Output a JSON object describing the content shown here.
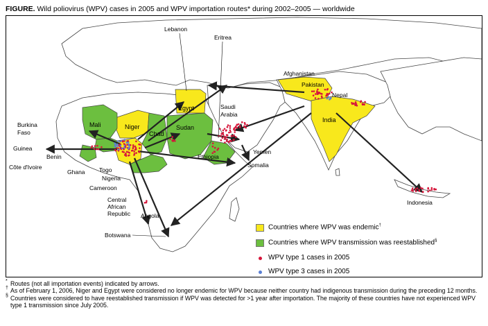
{
  "figure": {
    "label": "FIGURE.",
    "title": "Wild poliovirus (WPV) cases in 2005 and WPV importation routes* during 2002–2005 — worldwide"
  },
  "colors": {
    "endemic": "#f8e81c",
    "reestablished": "#6cbf3f",
    "wpv1": "#d6163b",
    "wpv3": "#5a7fd4",
    "arrow": "#222222",
    "land_fill": "#ffffff",
    "border": "#444444"
  },
  "map": {
    "endemic_countries": [
      "Egypt",
      "Niger",
      "Nigeria",
      "Afghanistan",
      "Pakistan",
      "India"
    ],
    "reestablished_countries": [
      "Mali",
      "Burkina Faso",
      "Chad",
      "Sudan",
      "Ethiopia",
      "Côte d'Ivoire",
      "Cameroon",
      "Central African Republic"
    ],
    "labels": {
      "lebanon": "Lebanon",
      "eritrea": "Eritrea",
      "afghanistan": "Afghanistan",
      "pakistan": "Pakistan",
      "nepal": "Nepal",
      "india": "India",
      "egypt": "Egypt",
      "saudi_arabia_1": "Saudi",
      "saudi_arabia_2": "Arabia",
      "mali": "Mali",
      "niger": "Niger",
      "chad": "Chad",
      "sudan": "Sudan",
      "burkina_1": "Burkina",
      "burkina_2": "Faso",
      "guinea": "Guinea",
      "benin": "Benin",
      "cote": "Côte d'Ivoire",
      "ghana": "Ghana",
      "togo": "Togo",
      "nigeria": "Nigeria",
      "cameroon": "Cameroon",
      "car_1": "Central",
      "car_2": "African",
      "car_3": "Republic",
      "angola": "Angola",
      "botswana": "Botswana",
      "ethiopia": "Ethiopia",
      "yemen": "Yemen",
      "somalia": "Somalia",
      "indonesia": "Indonesia"
    }
  },
  "legend": {
    "endemic": "Countries where WPV was endemic",
    "endemic_sup": "†",
    "reestablished": "Countries where WPV transmission was reestablished",
    "reestablished_sup": "§",
    "wpv1": "WPV type 1 cases in 2005",
    "wpv3": "WPV type 3 cases in 2005"
  },
  "footnotes": [
    {
      "mark": "*",
      "text": "Routes (not all importation events) indicated by arrows."
    },
    {
      "mark": "†",
      "text": "As of February 1, 2006, Niger and Egypt were considered no longer endemic for WPV because neither country had indigenous transmission during the preceding 12 months."
    },
    {
      "mark": "§",
      "text": "Countries were considered to have reestablished transmission if WPV was detected for >1 year after importation. The majority of these countries have not experienced WPV type 1 transmission since July 2005."
    }
  ]
}
